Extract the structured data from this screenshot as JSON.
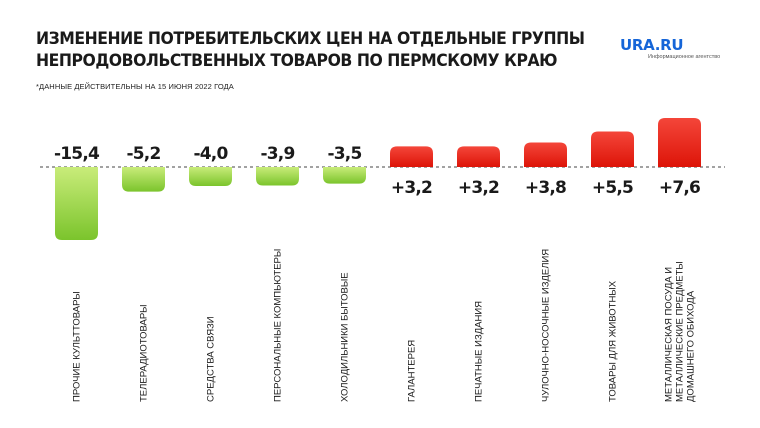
{
  "header": {
    "title_line1": "ИЗМЕНЕНИЕ ПОТРЕБИТЕЛЬСКИХ ЦЕН НА ОТДЕЛЬНЫЕ ГРУППЫ",
    "title_line2": "НЕПРОДОВОЛЬСТВЕННЫХ ТОВАРОВ ПО ПЕРМСКОМУ КРАЮ",
    "note": "*ДАННЫЕ ДЕЙСТВИТЕЛЬНЫ НА 15 ИЮНЯ 2022 ГОДА"
  },
  "logo": {
    "name": "URA.RU",
    "tagline": "Информационное агентство"
  },
  "colors": {
    "negative": "#8fd13a",
    "positive": "#e8261a",
    "baseline": "#444444",
    "logo": "#1565d8"
  },
  "chart_data": {
    "type": "bar",
    "title": "ИЗМЕНЕНИЕ ПОТРЕБИТЕЛЬСКИХ ЦЕН НА ОТДЕЛЬНЫЕ ГРУППЫ НЕПРОДОВОЛЬСТВЕННЫХ ТОВАРОВ ПО ПЕРМСКОМУ КРАЮ",
    "categories": [
      [
        "ПРОЧИЕ КУЛЬТТОВАРЫ"
      ],
      [
        "ТЕЛЕРАДИОТОВАРЫ"
      ],
      [
        "СРЕДСТВА СВЯЗИ"
      ],
      [
        "ПЕРСОНАЛЬНЫЕ КОМПЬЮТЕРЫ"
      ],
      [
        "ХОЛОДИЛЬНИКИ БЫТОВЫЕ"
      ],
      [
        "ГАЛАНТЕРЕЯ"
      ],
      [
        "ПЕЧАТНЫЕ ИЗДАНИЯ"
      ],
      [
        "ЧУЛОЧНО-НОСОЧНЫЕ ИЗДЕЛИЯ"
      ],
      [
        "ТОВАРЫ ДЛЯ ЖИВОТНЫХ"
      ],
      [
        "МЕТАЛЛИЧЕСКАЯ ПОСУДА И",
        "МЕТАЛЛИЧЕСКИЕ ПРЕДМЕТЫ",
        "ДОМАШНЕГО ОБИХОДА"
      ]
    ],
    "values": [
      -15.4,
      -5.2,
      -4.0,
      -3.9,
      -3.5,
      3.2,
      3.2,
      3.8,
      5.5,
      7.6
    ],
    "labels": [
      "-15,4",
      "-5,2",
      "-4,0",
      "-3,9",
      "-3,5",
      "+3,2",
      "+3,2",
      "+3,8",
      "+5,5",
      "+7,6"
    ],
    "grid": false,
    "legend": "none"
  }
}
